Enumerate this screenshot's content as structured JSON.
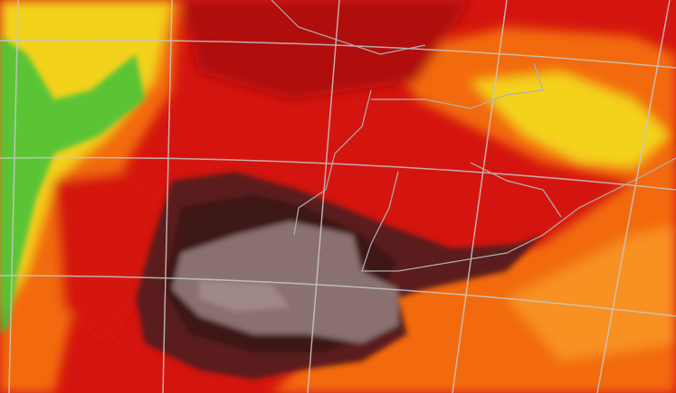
{
  "map": {
    "colors": {
      "background_red": "#d4150f",
      "deep_red": "#b0100c",
      "orange": "#f26a10",
      "light_orange": "#f89020",
      "yellow": "#f3d21c",
      "green": "#3fc23a",
      "maroon": "#5a1e1e",
      "dark_maroon": "#3e1414",
      "grey": "#8a7070",
      "light_grey": "#a08888",
      "gridline": "#c8c8c8",
      "border": "#b0b0b0"
    }
  }
}
